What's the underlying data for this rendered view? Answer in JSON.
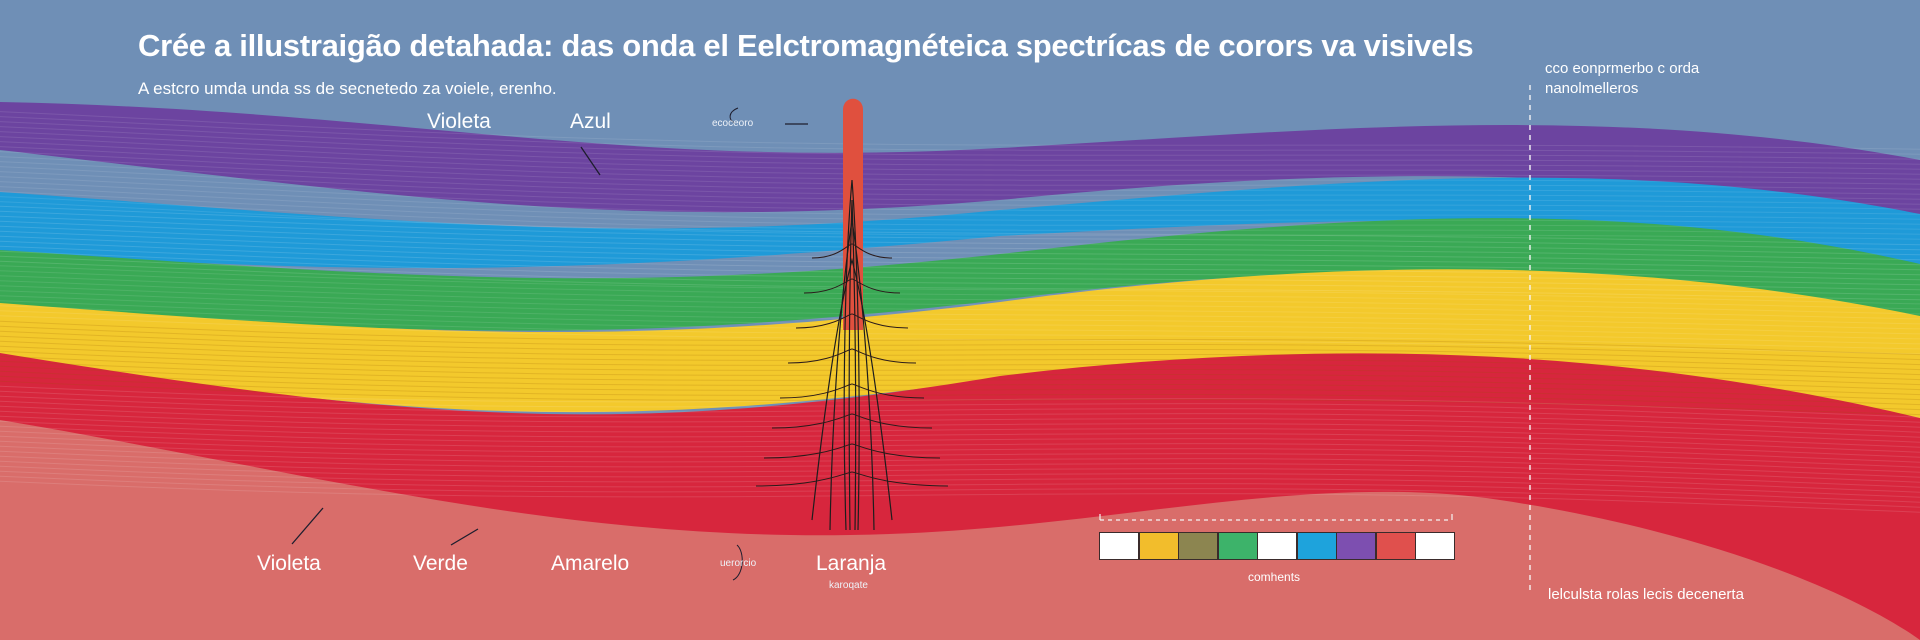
{
  "title": "Crée a illustraigão detahada: das onda el Eelctromagnéteica spectrícas de corors va visivels",
  "subtitle": "A estcro umda unda ss de secnetedo za voiele, erenho.",
  "top_labels": {
    "violet": "Violeta",
    "blue": "Azul",
    "pointer_small": "ecoceoro"
  },
  "bottom_labels": {
    "violet": "Violeta",
    "green": "Verde",
    "yellow": "Amarelo",
    "small_left": "uerorcio",
    "orange": "Laranja",
    "orange_small": "karoqate"
  },
  "right_top_note": {
    "line1": "cco eonprmerbo c orda",
    "line2": "nanolmelleros"
  },
  "right_bottom_note": "lelculsta rolas lecis decenerta",
  "swatch_caption": "comhents",
  "swatches": [
    "#ffffff",
    "#f2bd2c",
    "#8c8550",
    "#3db36a",
    "#ffffff",
    "#1ea3dc",
    "#7d4fb0",
    "#e0504d",
    "#ffffff"
  ],
  "colors": {
    "sky": "#6f8fb6",
    "violet": "#6c44a0",
    "blue": "#1f9ad8",
    "green": "#3aa955",
    "yellow": "#f3c92c",
    "red": "#d7263d",
    "ground": "#d96d6a",
    "spike": "#e0503e"
  }
}
